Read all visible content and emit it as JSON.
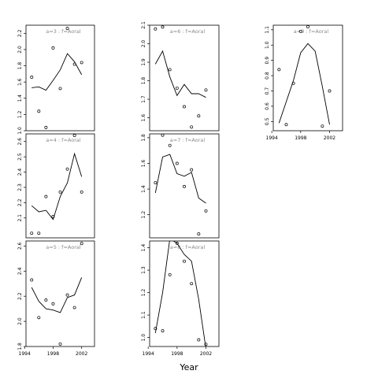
{
  "figure": {
    "xlabel": "Year"
  },
  "chart_data": [
    {
      "type": "line",
      "title": "a=3  :  f=Aoral",
      "x": [
        1995,
        1996,
        1997,
        1998,
        1999,
        2000,
        2001,
        2002
      ],
      "ylim": [
        1.0,
        2.3
      ],
      "xlim": [
        1994.2,
        2003.8
      ],
      "yticks": [
        1.0,
        1.2,
        1.4,
        1.6,
        1.8,
        2.0,
        2.2
      ],
      "xticks": [],
      "series": [
        {
          "kind": "points",
          "values": [
            1.66,
            1.24,
            1.04,
            2.02,
            1.52,
            2.26,
            1.82,
            1.84
          ]
        },
        {
          "kind": "line",
          "values": [
            1.53,
            1.54,
            1.5,
            1.62,
            1.75,
            1.95,
            1.85,
            1.69
          ]
        }
      ]
    },
    {
      "type": "line",
      "title": "a=6  :  f=Aoral",
      "x": [
        1995,
        1996,
        1997,
        1998,
        1999,
        2000,
        2001,
        2002
      ],
      "ylim": [
        1.53,
        2.1
      ],
      "xlim": [
        1994.2,
        2003.8
      ],
      "yticks": [
        1.6,
        1.7,
        1.8,
        1.9,
        2.0,
        2.1
      ],
      "xticks": [],
      "series": [
        {
          "kind": "points",
          "values": [
            2.08,
            2.09,
            1.86,
            1.76,
            1.66,
            1.55,
            1.61,
            1.75
          ]
        },
        {
          "kind": "line",
          "values": [
            1.89,
            1.96,
            1.82,
            1.72,
            1.78,
            1.73,
            1.73,
            1.71
          ]
        }
      ]
    },
    {
      "type": "line",
      "title": "a=9  :  f=Aoral",
      "x": [
        1995,
        1996,
        1997,
        1998,
        1999,
        2000,
        2001,
        2002
      ],
      "ylim": [
        0.44,
        1.13
      ],
      "xlim": [
        1994.2,
        2003.8
      ],
      "yticks": [
        0.5,
        0.6,
        0.7,
        0.8,
        0.9,
        1.0,
        1.1
      ],
      "xticks": [
        1994,
        1998,
        2002
      ],
      "series": [
        {
          "kind": "points",
          "values": [
            0.84,
            0.48,
            0.75,
            1.09,
            1.12,
            1.14,
            0.47,
            0.7
          ]
        },
        {
          "kind": "line",
          "values": [
            0.49,
            0.63,
            0.77,
            0.95,
            1.01,
            0.96,
            0.73,
            0.48
          ]
        }
      ]
    },
    {
      "type": "line",
      "title": "a=4  :  f=Aoral",
      "x": [
        1995,
        1996,
        1997,
        1998,
        1999,
        2000,
        2001,
        2002
      ],
      "ylim": [
        1.97,
        2.65
      ],
      "xlim": [
        1994.2,
        2003.8
      ],
      "yticks": [
        2.1,
        2.2,
        2.3,
        2.4,
        2.5,
        2.6
      ],
      "xticks": [],
      "series": [
        {
          "kind": "points",
          "values": [
            2.0,
            2.0,
            2.24,
            2.11,
            2.27,
            2.42,
            2.64,
            2.27
          ]
        },
        {
          "kind": "line",
          "values": [
            2.18,
            2.14,
            2.15,
            2.09,
            2.24,
            2.33,
            2.52,
            2.37
          ]
        }
      ]
    },
    {
      "type": "line",
      "title": "a=7  :  f=Aoral",
      "x": [
        1995,
        1996,
        1997,
        1998,
        1999,
        2000,
        2001,
        2002
      ],
      "ylim": [
        1.02,
        1.83
      ],
      "xlim": [
        1994.2,
        2003.8
      ],
      "yticks": [
        1.2,
        1.4,
        1.6,
        1.8
      ],
      "xticks": [],
      "series": [
        {
          "kind": "points",
          "values": [
            1.45,
            1.82,
            1.74,
            1.6,
            1.42,
            1.55,
            1.05,
            1.23
          ]
        },
        {
          "kind": "line",
          "values": [
            1.37,
            1.65,
            1.67,
            1.52,
            1.5,
            1.53,
            1.33,
            1.29
          ]
        }
      ]
    },
    {
      "type": "line",
      "title": "a=5  :  f=Aoral",
      "x": [
        1995,
        1996,
        1997,
        1998,
        1999,
        2000,
        2001,
        2002
      ],
      "ylim": [
        1.8,
        2.64
      ],
      "xlim": [
        1994.2,
        2003.8
      ],
      "yticks": [
        1.8,
        2.0,
        2.2,
        2.4,
        2.6
      ],
      "xticks": [
        1994,
        1998,
        2002
      ],
      "series": [
        {
          "kind": "points",
          "values": [
            2.33,
            2.03,
            2.17,
            2.14,
            1.82,
            2.21,
            2.11,
            2.62
          ]
        },
        {
          "kind": "line",
          "values": [
            2.27,
            2.16,
            2.1,
            2.09,
            2.07,
            2.19,
            2.21,
            2.35
          ]
        }
      ]
    },
    {
      "type": "line",
      "title": "a=8  :  f=Aoral",
      "x": [
        1995,
        1996,
        1997,
        1998,
        1999,
        2000,
        2001,
        2002
      ],
      "ylim": [
        0.96,
        1.43
      ],
      "xlim": [
        1994.2,
        2003.8
      ],
      "yticks": [
        1.0,
        1.1,
        1.2,
        1.3,
        1.4
      ],
      "xticks": [
        1994,
        1998,
        2002
      ],
      "series": [
        {
          "kind": "points",
          "values": [
            1.04,
            1.03,
            1.28,
            1.42,
            1.34,
            1.24,
            0.99,
            0.97
          ]
        },
        {
          "kind": "line",
          "values": [
            1.02,
            1.2,
            1.44,
            1.42,
            1.37,
            1.34,
            1.17,
            0.95
          ]
        }
      ]
    }
  ]
}
